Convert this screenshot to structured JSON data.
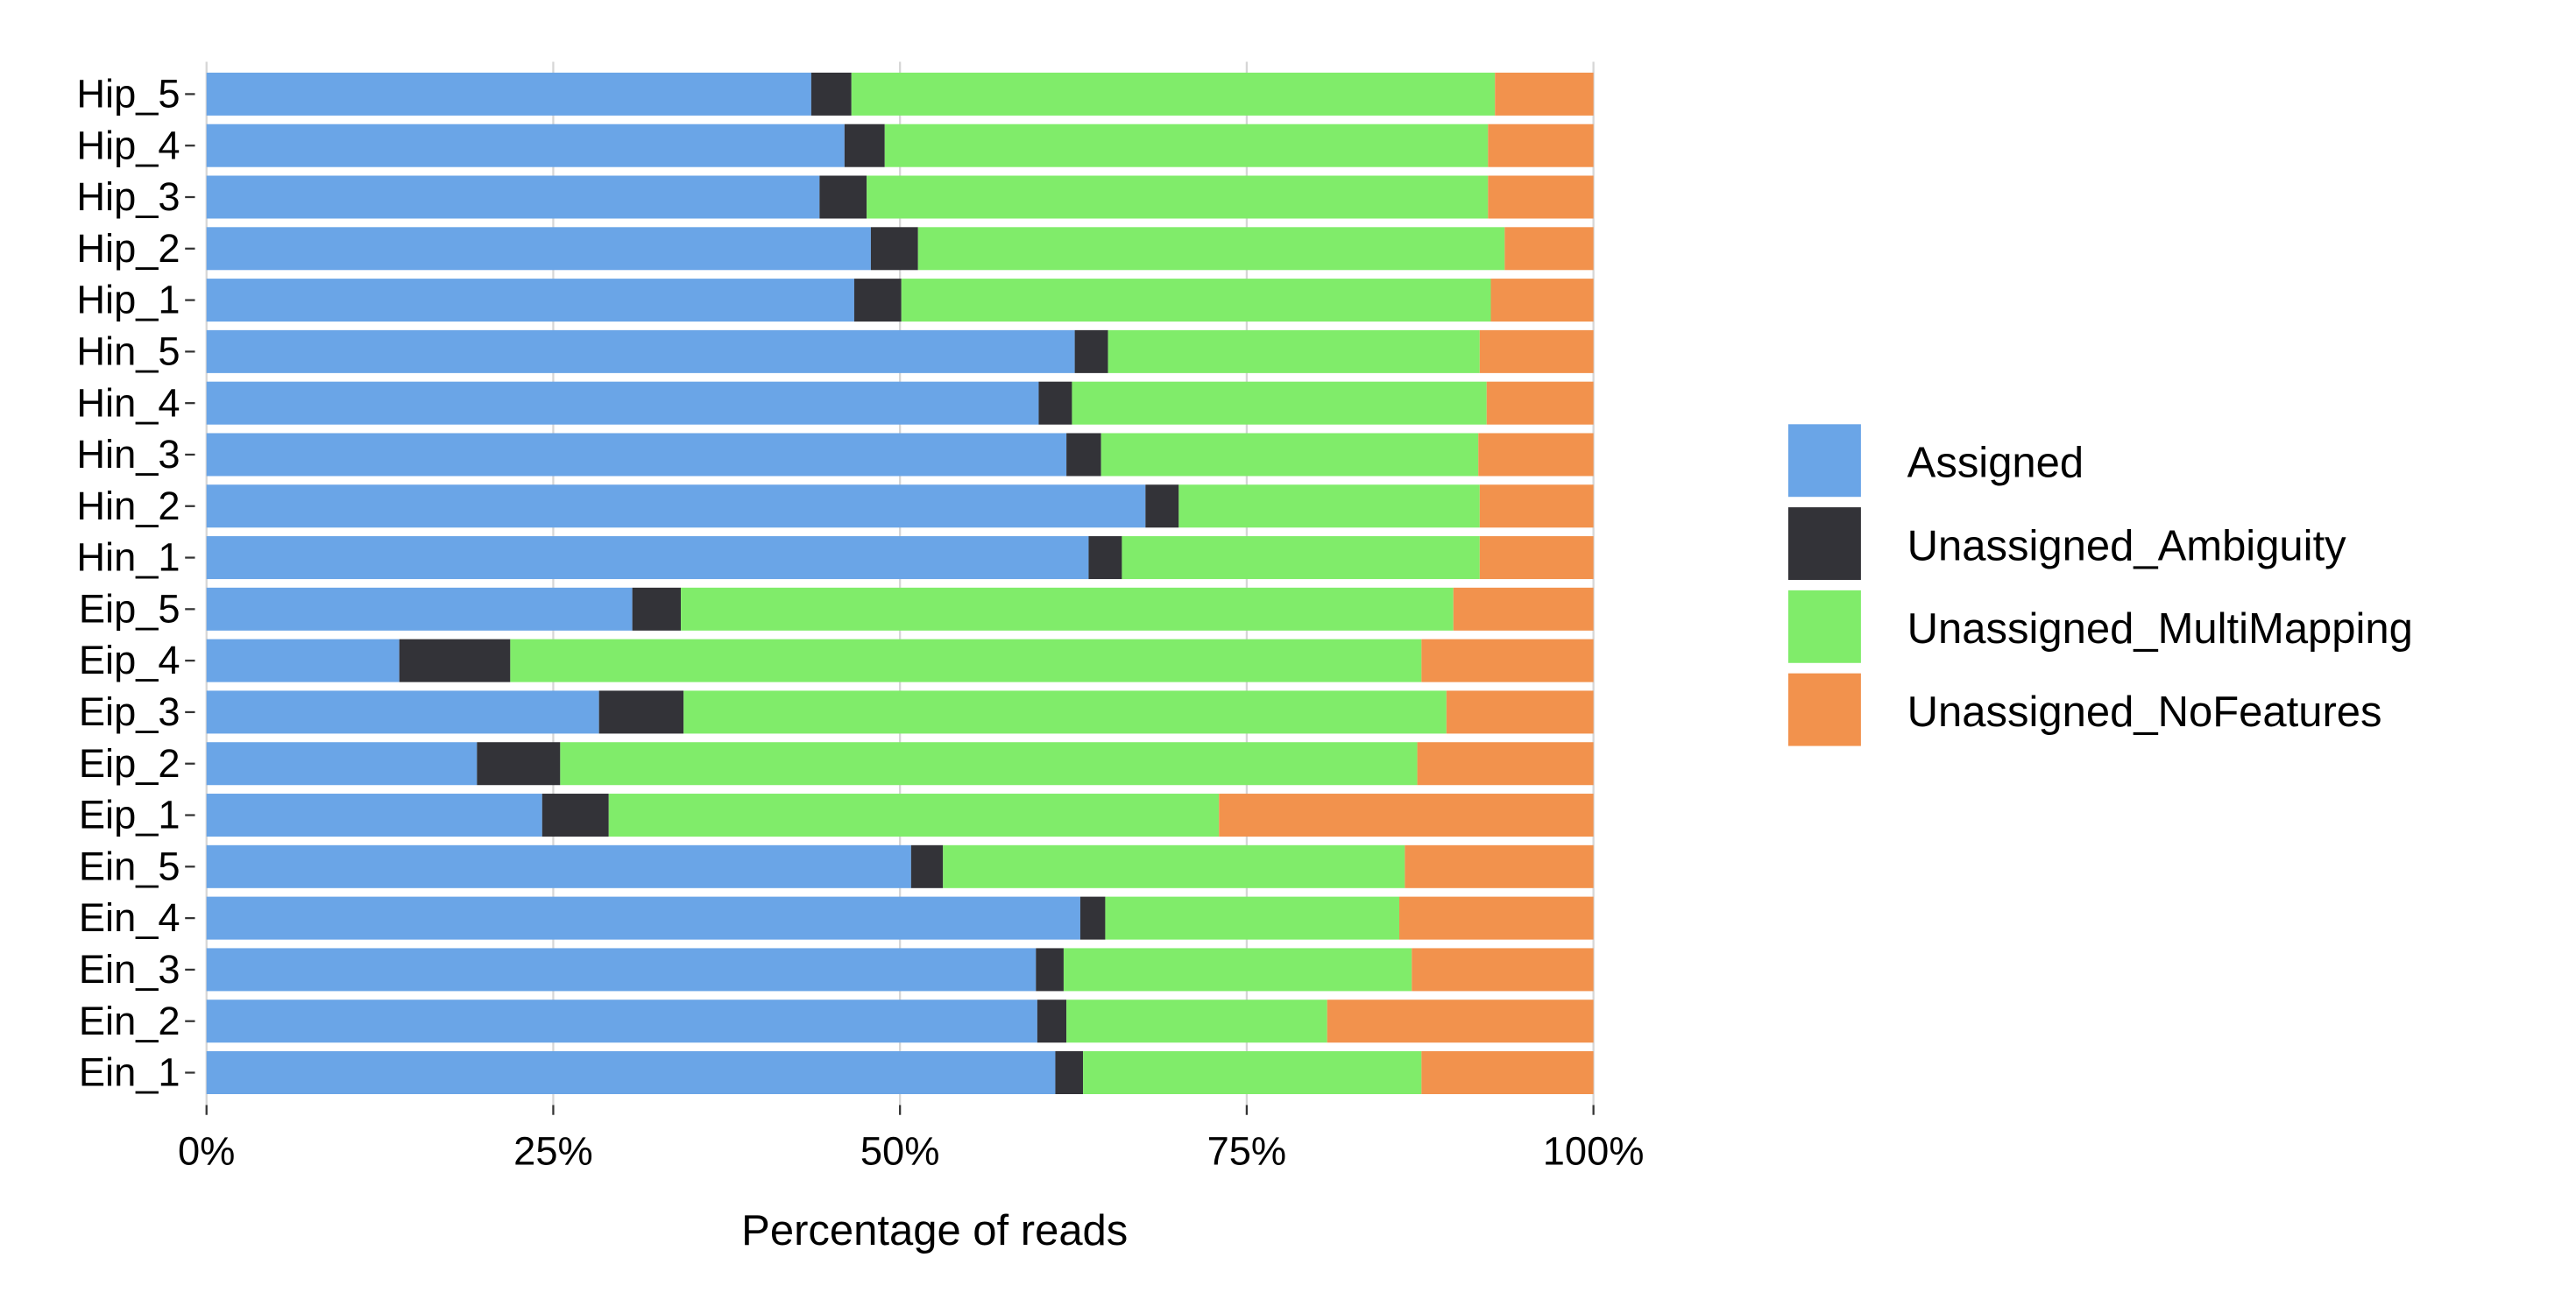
{
  "chart_data": {
    "type": "bar",
    "orientation": "horizontal",
    "stacked": true,
    "title": "",
    "xlabel": "Percentage of reads",
    "ylabel": "",
    "xlim": [
      0,
      100
    ],
    "x_ticks": [
      "0%",
      "25%",
      "50%",
      "75%",
      "100%"
    ],
    "x_tick_values": [
      0,
      25,
      50,
      75,
      100
    ],
    "grid": true,
    "legend_position": "right",
    "categories": [
      "Hip_5",
      "Hip_4",
      "Hip_3",
      "Hip_2",
      "Hip_1",
      "Hin_5",
      "Hin_4",
      "Hin_3",
      "Hin_2",
      "Hin_1",
      "Eip_5",
      "Eip_4",
      "Eip_3",
      "Eip_2",
      "Eip_1",
      "Ein_5",
      "Ein_4",
      "Ein_3",
      "Ein_2",
      "Ein_1"
    ],
    "series": [
      {
        "name": "Assigned",
        "color": "#6AA5E7",
        "values": [
          43.6,
          46.0,
          44.2,
          47.9,
          46.7,
          62.6,
          60.0,
          62.0,
          67.7,
          63.6,
          30.7,
          13.9,
          28.3,
          19.5,
          24.2,
          50.8,
          63.0,
          59.8,
          59.9,
          61.2
        ]
      },
      {
        "name": "Unassigned_Ambiguity",
        "color": "#333338",
        "values": [
          2.9,
          2.9,
          3.4,
          3.4,
          3.4,
          2.4,
          2.4,
          2.5,
          2.4,
          2.4,
          3.5,
          8.0,
          6.1,
          6.0,
          4.8,
          2.3,
          1.8,
          2.0,
          2.1,
          2.0
        ]
      },
      {
        "name": "Unassigned_MultiMapping",
        "color": "#80EC6A",
        "values": [
          46.4,
          43.5,
          44.8,
          42.3,
          42.5,
          26.8,
          29.9,
          27.2,
          21.7,
          25.8,
          55.7,
          65.7,
          55.0,
          61.8,
          44.0,
          33.3,
          21.2,
          25.1,
          18.8,
          24.4
        ]
      },
      {
        "name": "Unassigned_NoFeatures",
        "color": "#F2924D",
        "values": [
          7.1,
          7.6,
          7.6,
          6.4,
          7.4,
          8.2,
          7.7,
          8.3,
          8.2,
          8.2,
          10.1,
          12.4,
          10.6,
          12.7,
          27.0,
          13.6,
          14.0,
          13.1,
          19.2,
          12.4
        ]
      }
    ]
  }
}
